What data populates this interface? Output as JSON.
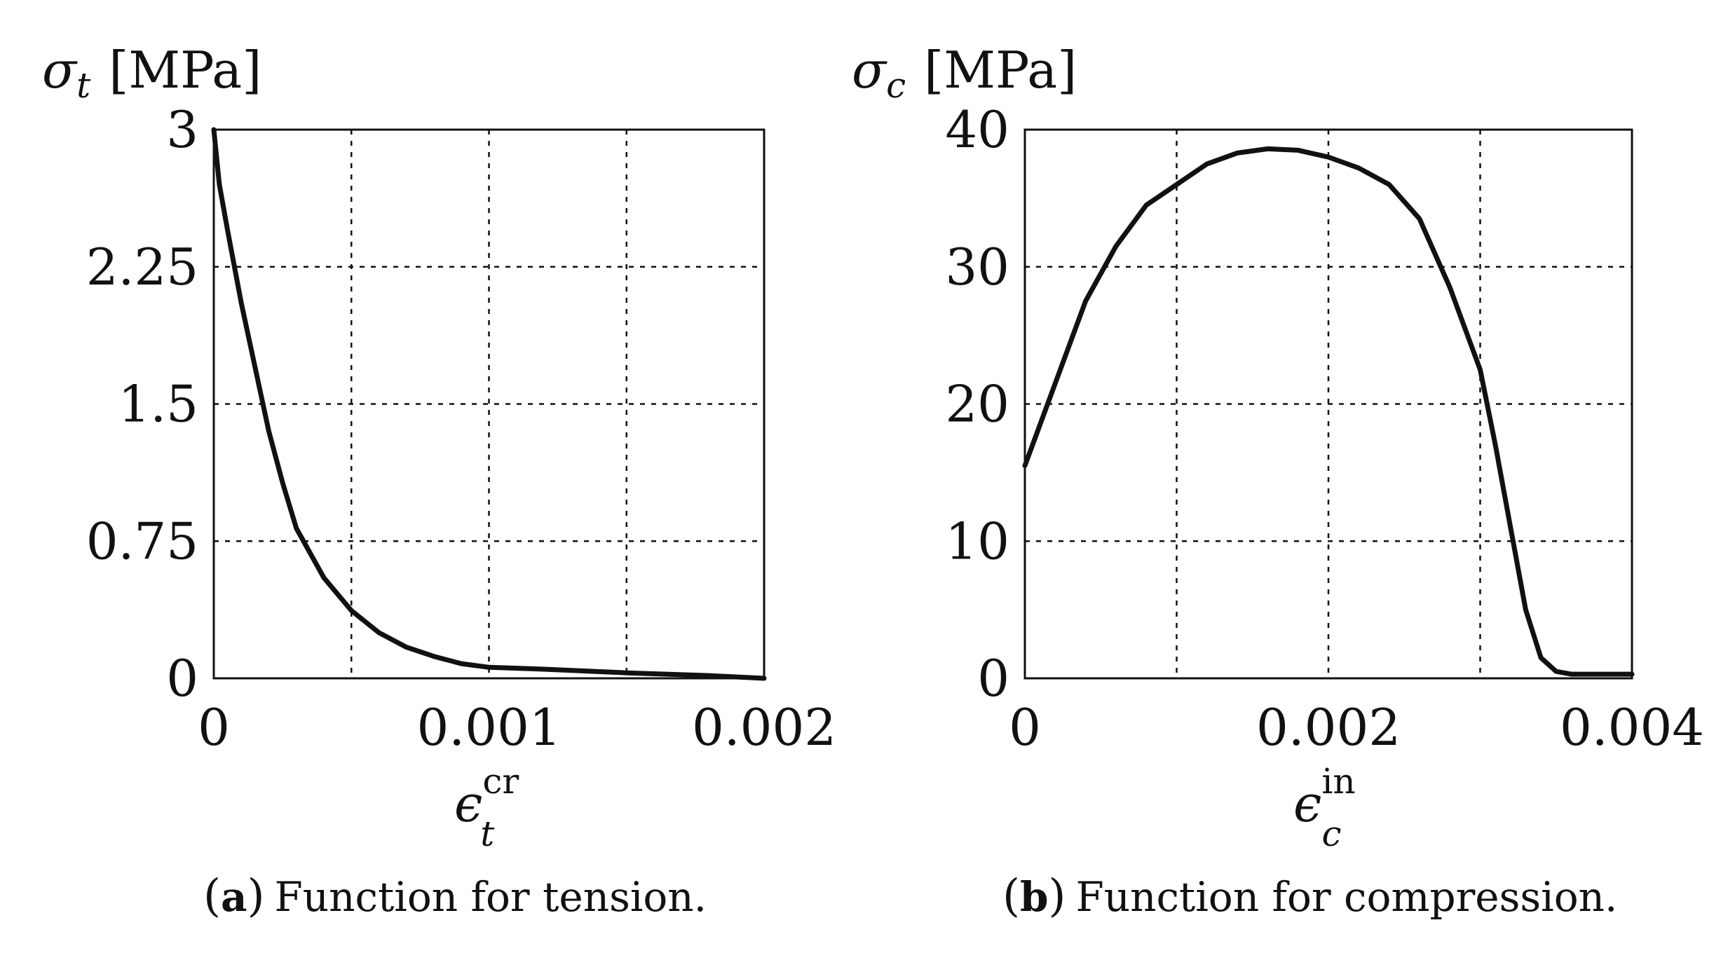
{
  "chart_data": [
    {
      "type": "line",
      "panel": "a",
      "title": "",
      "ylabel": {
        "symbol": "σ",
        "sub": "t",
        "unit": "[MPa]"
      },
      "xlabel": {
        "symbol": "ϵ",
        "sub": "t",
        "sup": "cr"
      },
      "xlim": [
        0,
        0.002
      ],
      "ylim": [
        0,
        3
      ],
      "xticks": [
        0,
        0.001,
        0.002
      ],
      "xtick_labels": [
        "0",
        "0.001",
        "0.002"
      ],
      "yticks": [
        0,
        0.75,
        1.5,
        2.25,
        3
      ],
      "ytick_labels": [
        "0",
        "0.75",
        "1.5",
        "2.25",
        "3"
      ],
      "grid": true,
      "series": [
        {
          "name": "tension",
          "x": [
            0,
            2e-05,
            5e-05,
            0.0001,
            0.00015,
            0.0002,
            0.00025,
            0.0003,
            0.0004,
            0.0005,
            0.0006,
            0.0007,
            0.0008,
            0.0009,
            0.001,
            0.0012,
            0.0015,
            0.0018,
            0.002
          ],
          "y": [
            3.0,
            2.7,
            2.45,
            2.05,
            1.7,
            1.35,
            1.07,
            0.82,
            0.55,
            0.37,
            0.25,
            0.17,
            0.12,
            0.08,
            0.06,
            0.05,
            0.03,
            0.015,
            0.0
          ]
        }
      ],
      "caption": {
        "letter": "a",
        "text": "Function for tension."
      }
    },
    {
      "type": "line",
      "panel": "b",
      "title": "",
      "ylabel": {
        "symbol": "σ",
        "sub": "c",
        "unit": "[MPa]"
      },
      "xlabel": {
        "symbol": "ϵ",
        "sub": "c",
        "sup": "in"
      },
      "xlim": [
        0,
        0.004
      ],
      "ylim": [
        0,
        40
      ],
      "xticks": [
        0,
        0.002,
        0.004
      ],
      "xtick_labels": [
        "0",
        "0.002",
        "0.004"
      ],
      "yticks": [
        0,
        10,
        20,
        30,
        40
      ],
      "ytick_labels": [
        "0",
        "10",
        "20",
        "30",
        "40"
      ],
      "grid": true,
      "series": [
        {
          "name": "compression",
          "x": [
            0,
            0.0002,
            0.0004,
            0.0006,
            0.0008,
            0.001,
            0.0012,
            0.0014,
            0.0016,
            0.0018,
            0.002,
            0.0022,
            0.0024,
            0.0026,
            0.0028,
            0.003,
            0.0031,
            0.0032,
            0.0033,
            0.0034,
            0.0035,
            0.0036,
            0.004
          ],
          "y": [
            15.5,
            21.5,
            27.5,
            31.5,
            34.5,
            36.0,
            37.5,
            38.3,
            38.6,
            38.5,
            38.0,
            37.2,
            36.0,
            33.5,
            28.5,
            22.5,
            17.0,
            11.0,
            5.0,
            1.5,
            0.5,
            0.3,
            0.3
          ]
        }
      ],
      "caption": {
        "letter": "b",
        "text": "Function for compression."
      }
    }
  ]
}
